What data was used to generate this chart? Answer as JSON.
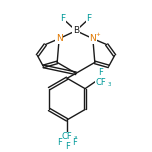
{
  "bg": "#ffffff",
  "bond_color": "#1a1a1a",
  "N_color": "#e07800",
  "F_color": "#009999",
  "lw": 1.0,
  "fs": 6.5,
  "fss": 4.5,
  "figsize": [
    1.52,
    1.52
  ],
  "dpi": 100,
  "xlim": [
    0,
    152
  ],
  "ylim": [
    0,
    152
  ],
  "Bx": 76,
  "By": 121,
  "F1x": 63,
  "F1y": 133,
  "F2x": 89,
  "F2y": 133,
  "LNx": 59,
  "LNy": 113,
  "RNx": 93,
  "RNy": 113,
  "lp": [
    [
      59,
      113
    ],
    [
      45,
      107
    ],
    [
      37,
      96
    ],
    [
      43,
      85
    ],
    [
      57,
      89
    ]
  ],
  "rp": [
    [
      93,
      113
    ],
    [
      107,
      107
    ],
    [
      115,
      96
    ],
    [
      109,
      85
    ],
    [
      95,
      89
    ]
  ],
  "Mx": 76,
  "My": 78,
  "Pcx": 67,
  "Pcy": 52,
  "Pr": 21,
  "ph_start_angle": 90
}
